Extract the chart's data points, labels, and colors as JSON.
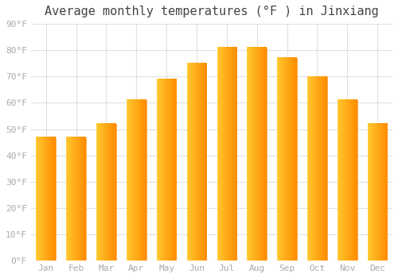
{
  "title": "Average monthly temperatures (°F ) in Jinxiang",
  "months": [
    "Jan",
    "Feb",
    "Mar",
    "Apr",
    "May",
    "Jun",
    "Jul",
    "Aug",
    "Sep",
    "Oct",
    "Nov",
    "Dec"
  ],
  "values": [
    47,
    47,
    52,
    61,
    69,
    75,
    81,
    81,
    77,
    70,
    61,
    52
  ],
  "bar_color_left": "#FFB300",
  "bar_color_right": "#FF8C00",
  "bar_color_mid": "#FFC830",
  "background_color": "#ffffff",
  "grid_color": "#e0e0e0",
  "title_fontsize": 11,
  "tick_fontsize": 8,
  "tick_color": "#aaaaaa",
  "ylim": [
    0,
    90
  ],
  "ytick_step": 10,
  "bar_width": 0.65
}
